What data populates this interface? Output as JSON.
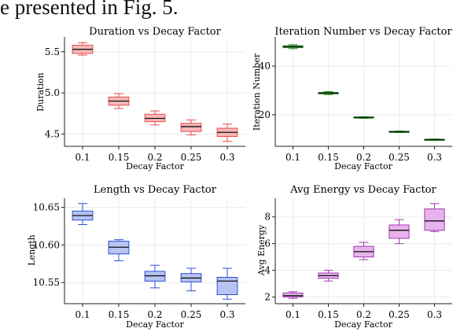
{
  "header_text": "e presented in Fig. 5.",
  "chart_data": [
    {
      "type": "box",
      "title": "Duration vs Decay Factor",
      "xlabel": "Decay Factor",
      "ylabel": "Duration",
      "categories": [
        "0.1",
        "0.15",
        "0.2",
        "0.25",
        "0.3"
      ],
      "yticks": [
        "4.5",
        "5.0",
        "5.5"
      ],
      "ylim": [
        4.35,
        5.68
      ],
      "color": "#e84c4c",
      "fill": "#f7b8b8",
      "boxes": [
        {
          "whislo": 5.46,
          "q1": 5.48,
          "med": 5.53,
          "q3": 5.58,
          "whishi": 5.61
        },
        {
          "whislo": 4.81,
          "q1": 4.85,
          "med": 4.9,
          "q3": 4.95,
          "whishi": 4.99
        },
        {
          "whislo": 4.61,
          "q1": 4.65,
          "med": 4.69,
          "q3": 4.74,
          "whishi": 4.78
        },
        {
          "whislo": 4.49,
          "q1": 4.53,
          "med": 4.59,
          "q3": 4.63,
          "whishi": 4.67
        },
        {
          "whislo": 4.41,
          "q1": 4.47,
          "med": 4.52,
          "q3": 4.57,
          "whishi": 4.62
        }
      ]
    },
    {
      "type": "box",
      "title": "Iteration Number vs Decay Factor",
      "xlabel": "Decay Factor",
      "ylabel": "Iteration Number",
      "categories": [
        "0.1",
        "0.15",
        "0.2",
        "0.25",
        "0.3"
      ],
      "yticks": [
        "20",
        "40"
      ],
      "ylim": [
        7,
        52
      ],
      "color": "#1f8a1f",
      "fill": "#7fd07f",
      "boxes": [
        {
          "whislo": 47.2,
          "q1": 47.6,
          "med": 48.0,
          "q3": 48.4,
          "whishi": 48.8
        },
        {
          "whislo": 28.3,
          "q1": 28.6,
          "med": 28.9,
          "q3": 29.2,
          "whishi": 29.5
        },
        {
          "whislo": 18.5,
          "q1": 18.7,
          "med": 18.9,
          "q3": 19.1,
          "whishi": 19.2
        },
        {
          "whislo": 12.7,
          "q1": 12.9,
          "med": 13.0,
          "q3": 13.2,
          "whishi": 13.3
        },
        {
          "whislo": 9.6,
          "q1": 9.7,
          "med": 9.8,
          "q3": 9.9,
          "whishi": 10.0
        }
      ]
    },
    {
      "type": "box",
      "title": "Length vs Decay Factor",
      "xlabel": "Decay Factor",
      "ylabel": "Length",
      "categories": [
        "0.1",
        "0.15",
        "0.2",
        "0.25",
        "0.3"
      ],
      "yticks": [
        "10.55",
        "10.60",
        "10.65"
      ],
      "ylim": [
        10.522,
        10.662
      ],
      "color": "#2f4fd8",
      "fill": "#b7c3f3",
      "boxes": [
        {
          "whislo": 10.627,
          "q1": 10.633,
          "med": 10.639,
          "q3": 10.645,
          "whishi": 10.655
        },
        {
          "whislo": 10.579,
          "q1": 10.588,
          "med": 10.597,
          "q3": 10.605,
          "whishi": 10.607
        },
        {
          "whislo": 10.543,
          "q1": 10.552,
          "med": 10.559,
          "q3": 10.565,
          "whishi": 10.573
        },
        {
          "whislo": 10.539,
          "q1": 10.551,
          "med": 10.556,
          "q3": 10.562,
          "whishi": 10.569
        },
        {
          "whislo": 10.528,
          "q1": 10.534,
          "med": 10.552,
          "q3": 10.557,
          "whishi": 10.569
        }
      ]
    },
    {
      "type": "box",
      "title": "Avg Energy vs Decay Factor",
      "xlabel": "Decay Factor",
      "ylabel": "Avg Energy",
      "categories": [
        "0.1",
        "0.15",
        "0.2",
        "0.25",
        "0.3"
      ],
      "yticks": [
        "2",
        "4",
        "6",
        "8"
      ],
      "ylim": [
        1.5,
        9.4
      ],
      "color": "#a23ab0",
      "fill": "#e8b3ec",
      "boxes": [
        {
          "whislo": 1.9,
          "q1": 2.0,
          "med": 2.1,
          "q3": 2.3,
          "whishi": 2.4
        },
        {
          "whislo": 3.2,
          "q1": 3.4,
          "med": 3.6,
          "q3": 3.8,
          "whishi": 4.0
        },
        {
          "whislo": 4.8,
          "q1": 5.0,
          "med": 5.4,
          "q3": 5.8,
          "whishi": 6.1
        },
        {
          "whislo": 6.0,
          "q1": 6.4,
          "med": 7.0,
          "q3": 7.4,
          "whishi": 7.8
        },
        {
          "whislo": 6.9,
          "q1": 7.0,
          "med": 7.7,
          "q3": 8.6,
          "whishi": 9.0
        }
      ]
    }
  ]
}
